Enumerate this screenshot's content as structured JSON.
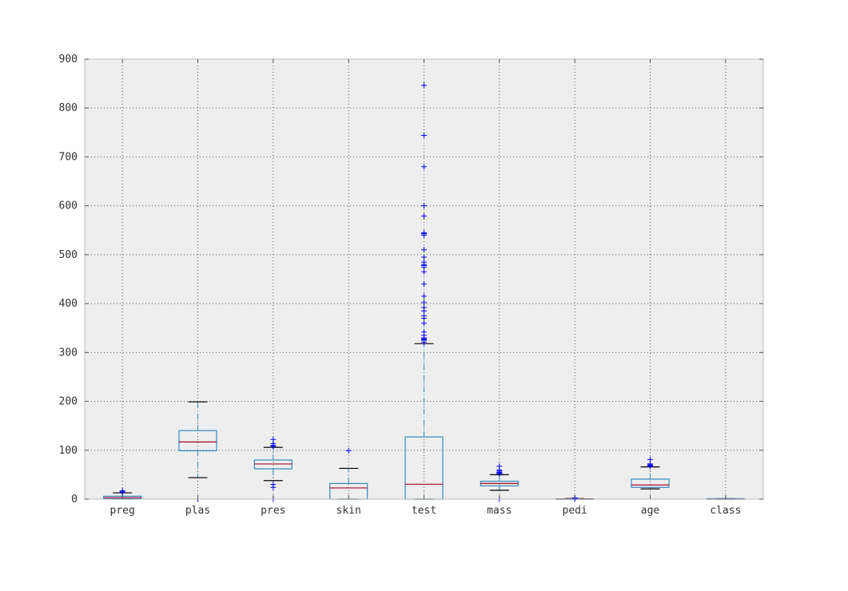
{
  "chart_data": {
    "type": "box",
    "title": "",
    "xlabel": "",
    "ylabel": "",
    "ylim": [
      0,
      900
    ],
    "yticks": [
      0,
      100,
      200,
      300,
      400,
      500,
      600,
      700,
      800,
      900
    ],
    "grid": true,
    "legend": "none",
    "colors": {
      "plot_bg": "#eeeeee",
      "frame": "#bcbcbc",
      "box": "#348abd",
      "median": "#a60628",
      "cap": "#000000",
      "flier": "#0000ff",
      "grid": "#555555"
    },
    "categories": [
      "preg",
      "plas",
      "pres",
      "skin",
      "test",
      "mass",
      "pedi",
      "age",
      "class"
    ],
    "boxes": [
      {
        "label": "preg",
        "whisker_low": 0,
        "q1": 1,
        "median": 3,
        "q3": 6,
        "whisker_high": 13,
        "fliers": [
          14,
          15,
          17
        ]
      },
      {
        "label": "plas",
        "whisker_low": 44,
        "q1": 99,
        "median": 117,
        "q3": 140.25,
        "whisker_high": 199,
        "fliers": [
          0,
          0,
          0,
          0,
          0
        ]
      },
      {
        "label": "pres",
        "whisker_low": 38,
        "q1": 62,
        "median": 72,
        "q3": 80,
        "whisker_high": 106,
        "fliers": [
          0,
          24,
          30,
          108,
          110,
          114,
          122
        ]
      },
      {
        "label": "skin",
        "whisker_low": 0,
        "q1": 0,
        "median": 23,
        "q3": 32,
        "whisker_high": 63,
        "fliers": [
          99
        ]
      },
      {
        "label": "test",
        "whisker_low": 0,
        "q1": 0,
        "median": 30.5,
        "q3": 127.25,
        "whisker_high": 318,
        "fliers": [
          321,
          325,
          326,
          328,
          330,
          335,
          342,
          360,
          370,
          375,
          385,
          392,
          402,
          415,
          440,
          465,
          474,
          478,
          480,
          485,
          495,
          510,
          540,
          543,
          545,
          579,
          600,
          680,
          744,
          846
        ]
      },
      {
        "label": "mass",
        "whisker_low": 18.2,
        "q1": 27.3,
        "median": 32,
        "q3": 36.6,
        "whisker_high": 50,
        "fliers": [
          0,
          52.3,
          53.2,
          55,
          57.3,
          59.4,
          67.1
        ]
      },
      {
        "label": "pedi",
        "whisker_low": 0.078,
        "q1": 0.24,
        "median": 0.37,
        "q3": 0.63,
        "whisker_high": 1.19,
        "fliers": [
          1.3,
          1.5,
          1.7,
          1.9,
          2.1,
          2.3,
          2.42
        ]
      },
      {
        "label": "age",
        "whisker_low": 21,
        "q1": 24,
        "median": 29,
        "q3": 41,
        "whisker_high": 66,
        "fliers": [
          67,
          68,
          69,
          70,
          72,
          81
        ]
      },
      {
        "label": "class",
        "whisker_low": 0,
        "q1": 0,
        "median": 0,
        "q3": 1,
        "whisker_high": 1,
        "fliers": []
      }
    ]
  }
}
